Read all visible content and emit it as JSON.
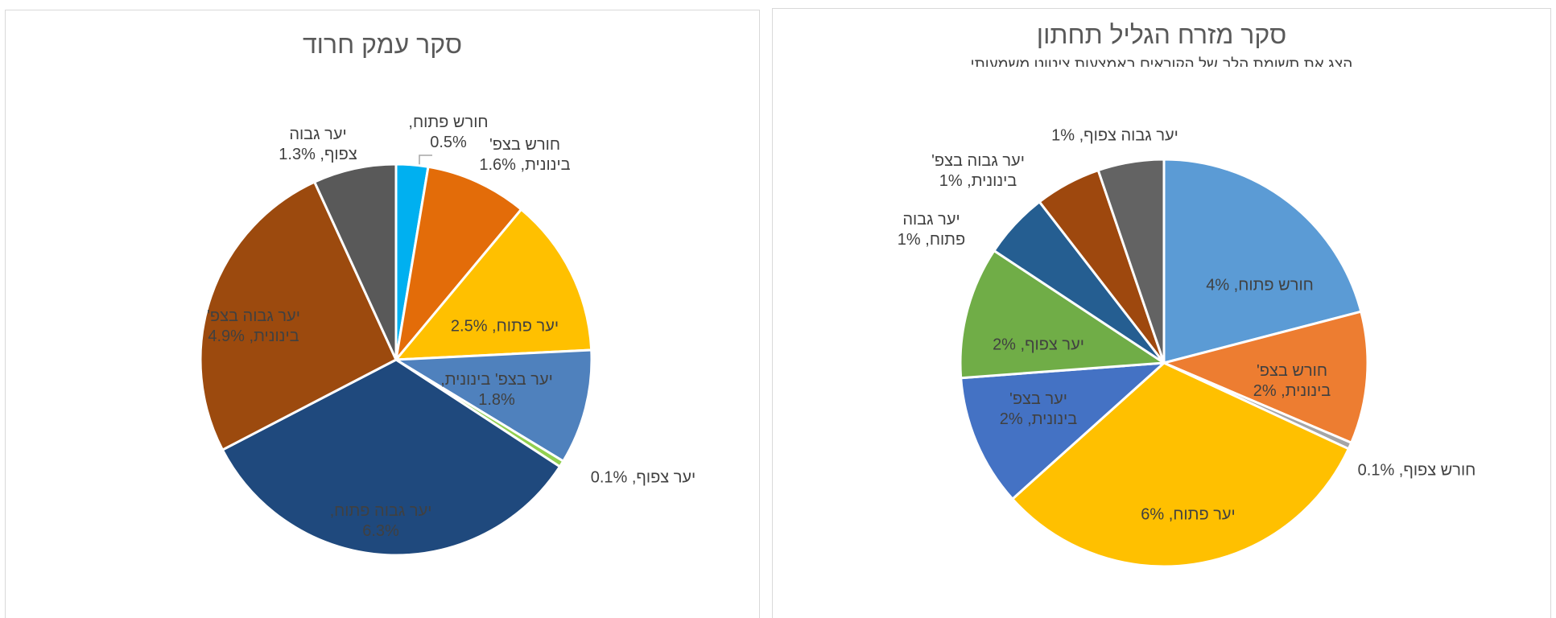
{
  "chart_data": [
    {
      "type": "pie",
      "title": "סקר עמק חרוד",
      "labels": [
        "חורש פתוח, 0.5%",
        "חורש בצפ' בינונית, 1.6%",
        "יער פתוח, 2.5%",
        "יער בצפ' בינונית, 1.8%",
        "יער צפוף, 0.1%",
        "יער גבוה פתוח, 6.3%",
        "יער גבוה בצפ' בינונית, 4.9%",
        "יער גבוה צפוף, 1.3%"
      ],
      "values": [
        0.5,
        1.6,
        2.5,
        1.8,
        0.1,
        6.3,
        4.9,
        1.3
      ],
      "colors": [
        "#00b0f0",
        "#e36c09",
        "#ffc000",
        "#4f81bd",
        "#92d050",
        "#1f497d",
        "#9c4a0e",
        "#595959"
      ]
    },
    {
      "type": "pie",
      "title": "סקר מזרח הגליל תחתון",
      "subtitle": "הצג את תשומת הלב של הקוראים באמצעות ציטוט משמעותי",
      "labels": [
        "חורש פתוח, 4%",
        "חורש בצפ' בינונית, 2%",
        "חורש צפוף, 0.1%",
        "יער פתוח, 6%",
        "יער בצפ' בינונית, 2%",
        "יער צפוף, 2%",
        "יער גבוה פתוח, 1%",
        "יער גבוה בצפ' בינונית, 1%",
        "יער גבוה צפוף, 1%"
      ],
      "values": [
        4,
        2,
        0.1,
        6,
        2,
        2,
        1,
        1,
        1
      ],
      "colors": [
        "#5b9bd5",
        "#ed7d31",
        "#a5a5a5",
        "#ffc000",
        "#4472c4",
        "#70ad47",
        "#255e91",
        "#9e480e",
        "#636363"
      ]
    }
  ]
}
